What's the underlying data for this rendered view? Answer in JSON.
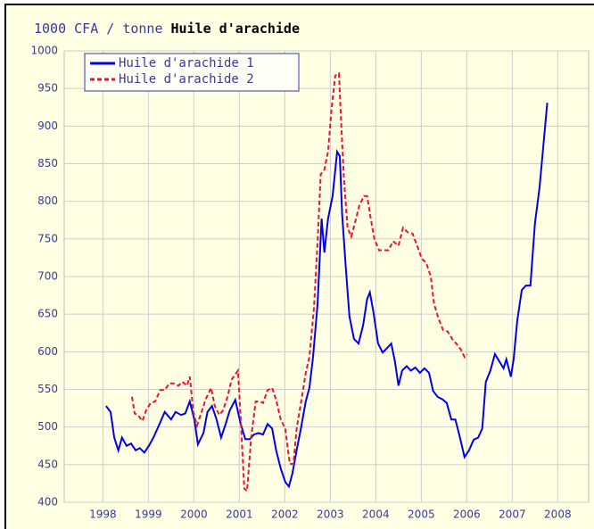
{
  "chart_data": {
    "type": "line",
    "ylabel": "1000 CFA / tonne",
    "title": "Huile d'arachide",
    "xlim": [
      1997.65,
      2009.18
    ],
    "xticks": [
      {
        "value": 1998.5,
        "label": "1998"
      },
      {
        "value": 1999.5,
        "label": "1999"
      },
      {
        "value": 2000.5,
        "label": "2000"
      },
      {
        "value": 2001.5,
        "label": "2001"
      },
      {
        "value": 2002.5,
        "label": "2002"
      },
      {
        "value": 2003.5,
        "label": "2003"
      },
      {
        "value": 2004.5,
        "label": "2004"
      },
      {
        "value": 2005.5,
        "label": "2005"
      },
      {
        "value": 2006.5,
        "label": "2006"
      },
      {
        "value": 2007.5,
        "label": "2007"
      },
      {
        "value": 2008.5,
        "label": "2008"
      }
    ],
    "ylim": [
      400,
      1000
    ],
    "yticks": [
      400,
      450,
      500,
      550,
      600,
      650,
      700,
      750,
      800,
      850,
      900,
      950,
      1000
    ],
    "grid": true,
    "legend": "top-left",
    "series": [
      {
        "name": "Huile d'arachide 1",
        "color": "#0000ee",
        "dash": false,
        "x": [
          1998.57,
          1998.67,
          1998.75,
          1998.84,
          1998.92,
          1999.02,
          1999.12,
          1999.22,
          1999.31,
          1999.41,
          1999.51,
          1999.61,
          1999.73,
          1999.86,
          2000.0,
          2000.1,
          2000.22,
          2000.31,
          2000.41,
          2000.51,
          2000.59,
          2000.71,
          2000.8,
          2000.9,
          2001.0,
          2001.1,
          2001.2,
          2001.29,
          2001.41,
          2001.53,
          2001.63,
          2001.73,
          2001.82,
          2001.92,
          2002.02,
          2002.12,
          2002.22,
          2002.31,
          2002.41,
          2002.51,
          2002.59,
          2002.67,
          2002.76,
          2002.86,
          2002.96,
          2003.04,
          2003.12,
          2003.22,
          2003.31,
          2003.37,
          2003.45,
          2003.55,
          2003.65,
          2003.71,
          2003.76,
          2003.84,
          2003.92,
          2004.02,
          2004.12,
          2004.22,
          2004.31,
          2004.37,
          2004.45,
          2004.55,
          2004.65,
          2004.75,
          2004.84,
          2004.92,
          2005.0,
          2005.08,
          2005.18,
          2005.27,
          2005.37,
          2005.47,
          2005.57,
          2005.67,
          2005.76,
          2005.86,
          2005.96,
          2006.06,
          2006.16,
          2006.25,
          2006.35,
          2006.45,
          2006.55,
          2006.65,
          2006.75,
          2006.84,
          2006.92,
          2007.02,
          2007.12,
          2007.22,
          2007.31,
          2007.37,
          2007.47,
          2007.53,
          2007.61,
          2007.71,
          2007.8,
          2007.9,
          2008.0,
          2008.1,
          2008.2,
          2008.27
        ],
        "values": [
          528,
          520,
          486,
          469,
          486,
          475,
          478,
          469,
          472,
          466,
          475,
          486,
          502,
          520,
          510,
          520,
          516,
          518,
          534,
          510,
          477,
          492,
          520,
          528,
          510,
          486,
          504,
          522,
          536,
          504,
          484,
          484,
          490,
          492,
          490,
          504,
          498,
          469,
          445,
          427,
          421,
          439,
          469,
          500,
          534,
          552,
          593,
          664,
          777,
          732,
          777,
          807,
          866,
          860,
          783,
          712,
          647,
          617,
          611,
          635,
          670,
          679,
          652,
          611,
          599,
          605,
          611,
          587,
          555,
          575,
          581,
          575,
          579,
          572,
          578,
          572,
          548,
          540,
          537,
          532,
          510,
          510,
          486,
          460,
          469,
          483,
          486,
          498,
          560,
          575,
          597,
          587,
          578,
          590,
          567,
          590,
          641,
          682,
          688,
          688,
          771,
          818,
          884,
          931
        ]
      },
      {
        "name": "Huile d'arachide 2",
        "color": "#ee1133",
        "dash": true,
        "x": [
          1999.14,
          1999.2,
          1999.27,
          1999.37,
          1999.45,
          1999.55,
          1999.65,
          1999.76,
          1999.86,
          1999.96,
          2000.06,
          2000.16,
          2000.25,
          2000.35,
          2000.41,
          2000.49,
          2000.57,
          2000.67,
          2000.76,
          2000.88,
          2000.96,
          2001.06,
          2001.14,
          2001.24,
          2001.33,
          2001.47,
          2001.53,
          2001.61,
          2001.67,
          2001.76,
          2001.86,
          2001.94,
          2002.02,
          2002.12,
          2002.22,
          2002.31,
          2002.41,
          2002.51,
          2002.61,
          2002.69,
          2002.76,
          2002.86,
          2002.96,
          2003.04,
          2003.14,
          2003.22,
          2003.29,
          2003.37,
          2003.45,
          2003.53,
          2003.61,
          2003.69,
          2003.75,
          2003.8,
          2003.88,
          2003.96,
          2004.04,
          2004.14,
          2004.24,
          2004.31,
          2004.39,
          2004.47,
          2004.57,
          2004.67,
          2004.78,
          2004.88,
          2005.0,
          2005.1,
          2005.2,
          2005.31,
          2005.41,
          2005.51,
          2005.61,
          2005.71,
          2005.78,
          2005.88,
          2005.98,
          2006.08,
          2006.18,
          2006.27,
          2006.37,
          2006.45,
          2006.51
        ],
        "values": [
          540,
          518,
          516,
          508,
          522,
          532,
          534,
          549,
          549,
          558,
          558,
          555,
          560,
          555,
          567,
          520,
          502,
          520,
          537,
          552,
          528,
          516,
          522,
          540,
          563,
          575,
          510,
          418,
          415,
          486,
          534,
          534,
          532,
          549,
          552,
          536,
          510,
          498,
          451,
          451,
          498,
          534,
          572,
          593,
          658,
          747,
          836,
          842,
          866,
          925,
          967,
          970,
          890,
          830,
          765,
          753,
          771,
          795,
          807,
          807,
          777,
          750,
          735,
          735,
          735,
          747,
          741,
          765,
          759,
          757,
          741,
          724,
          718,
          700,
          664,
          644,
          629,
          627,
          617,
          611,
          603,
          593,
          597
        ]
      }
    ]
  }
}
